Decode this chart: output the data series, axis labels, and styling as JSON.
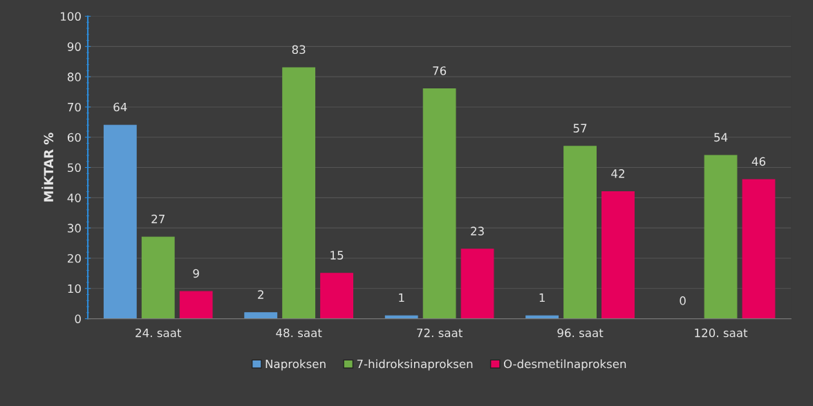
{
  "chart_data": {
    "type": "bar",
    "ylabel": "MİKTAR %",
    "categories": [
      "24. saat",
      "48. saat",
      "72. saat",
      "96. saat",
      "120. saat"
    ],
    "series": [
      {
        "name": "Naproksen",
        "color": "#5b9bd5",
        "values": [
          64,
          2,
          1,
          1,
          0
        ]
      },
      {
        "name": "7-hidroksinaproksen",
        "color": "#70ad47",
        "values": [
          27,
          83,
          76,
          57,
          54
        ]
      },
      {
        "name": "O-desmetilnaproksen",
        "color": "#e6005c",
        "values": [
          9,
          15,
          23,
          42,
          46
        ]
      }
    ],
    "ylim": [
      0,
      100
    ],
    "yticks": [
      0,
      10,
      20,
      30,
      40,
      50,
      60,
      70,
      80,
      90,
      100
    ],
    "grid": "y",
    "legend": "bottom",
    "data_labels": true
  }
}
